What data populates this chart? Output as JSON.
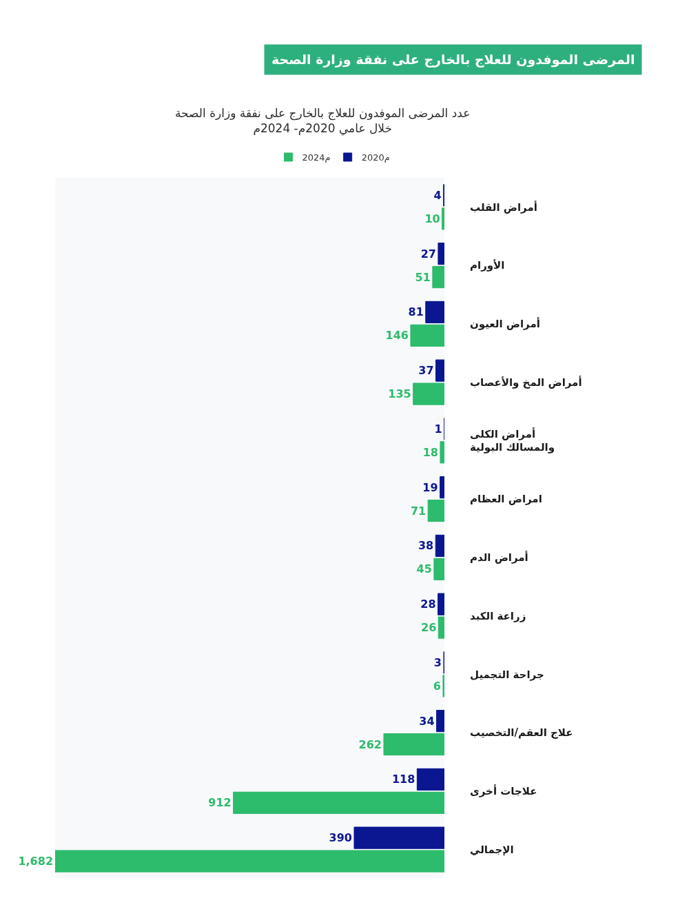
{
  "chart_data": {
    "type": "bar",
    "orientation": "horizontal",
    "title": "المرضى الموفدون للعلاج بالخارج على نفقة وزارة الصحة",
    "subtitle": "عدد المرضى الموفدون للعلاج بالخارج على نفقة وزارة الصحة\nخلال عامي 2020م- 2024م",
    "categories": [
      "أمراض القلب",
      "الأورام",
      "أمراض العيون",
      "أمراض المخ والأعصاب",
      "أمراض الكلى\nوالمسالك البولية",
      "امراض العظام",
      "أمراض الدم",
      "زراعة الكبد",
      "جراحة التجميل",
      "علاج العقم/التخصيب",
      "علاجات أخرى",
      "الإجمالي"
    ],
    "series": [
      {
        "name": "2020م",
        "color": "#0b1790",
        "values": [
          4,
          27,
          81,
          37,
          1,
          19,
          38,
          28,
          3,
          34,
          118,
          390
        ],
        "value_labels": [
          "4",
          "27",
          "81",
          "37",
          "1",
          "19",
          "38",
          "28",
          "3",
          "34",
          "118",
          "390"
        ]
      },
      {
        "name": "2024م",
        "color": "#2dbb6c",
        "values": [
          10,
          51,
          146,
          135,
          18,
          71,
          45,
          26,
          6,
          262,
          912,
          1682
        ],
        "value_labels": [
          "10",
          "51",
          "146",
          "135",
          "18",
          "71",
          "45",
          "26",
          "6",
          "262",
          "912",
          "1,682"
        ]
      }
    ],
    "xlim": [
      1682,
      0
    ],
    "tick_labels": "y",
    "legend": "top"
  }
}
